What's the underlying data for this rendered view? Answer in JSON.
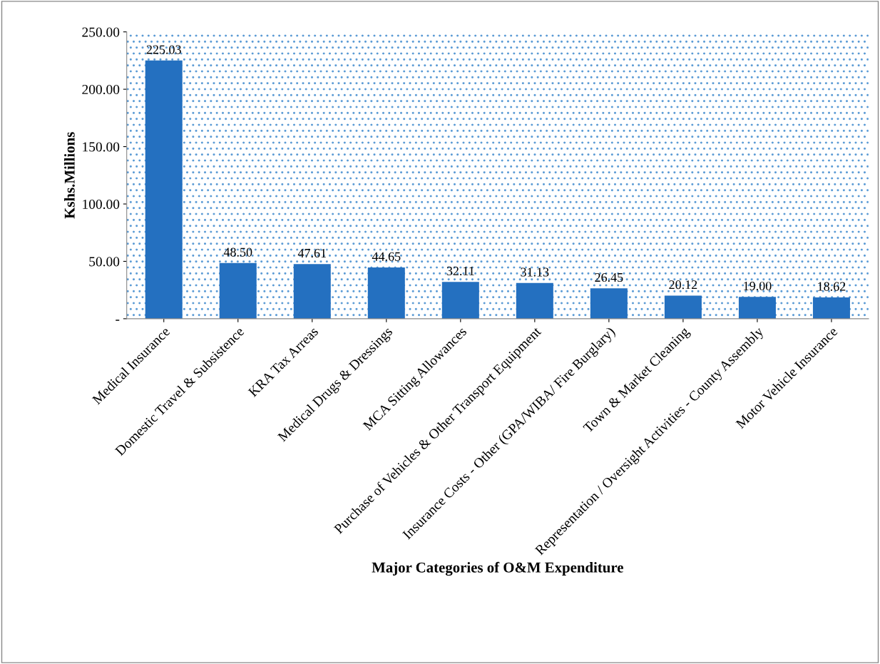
{
  "chart_data": {
    "type": "bar",
    "xlabel": "Major Categories of O&M Expenditure",
    "ylabel": "Kshs.Millions",
    "categories": [
      "Medical Insurance",
      "Domestic Travel & Subsistence",
      "KRA Tax Arreas",
      "Medical Drugs & Dressings",
      "MCA Sitting Allowances",
      "Purchase of Vehicles & Other Transport Equipment",
      "Insurance Costs - Other (GPA/WIBA/ Fire Burglary)",
      "Town & Market Cleaning",
      "Representation / Oversight Activities - County Assembly",
      "Motor Vehicle Insurance"
    ],
    "values": [
      225.03,
      48.5,
      47.61,
      44.65,
      32.11,
      31.13,
      26.45,
      20.12,
      19.0,
      18.62
    ],
    "value_labels": [
      "225.03",
      "48.50",
      "47.61",
      "44.65",
      "32.11",
      "31.13",
      "26.45",
      "20.12",
      "19.00",
      "18.62"
    ],
    "color": "#2470c0",
    "ylim": [
      0,
      250
    ],
    "yticks": [
      {
        "value": 0,
        "label": "-"
      },
      {
        "value": 50,
        "label": "50.00"
      },
      {
        "value": 100,
        "label": "100.00"
      },
      {
        "value": 150,
        "label": "150.00"
      },
      {
        "value": 200,
        "label": "200.00"
      },
      {
        "value": 250,
        "label": "250.00"
      }
    ],
    "grid": false,
    "legend": false
  }
}
